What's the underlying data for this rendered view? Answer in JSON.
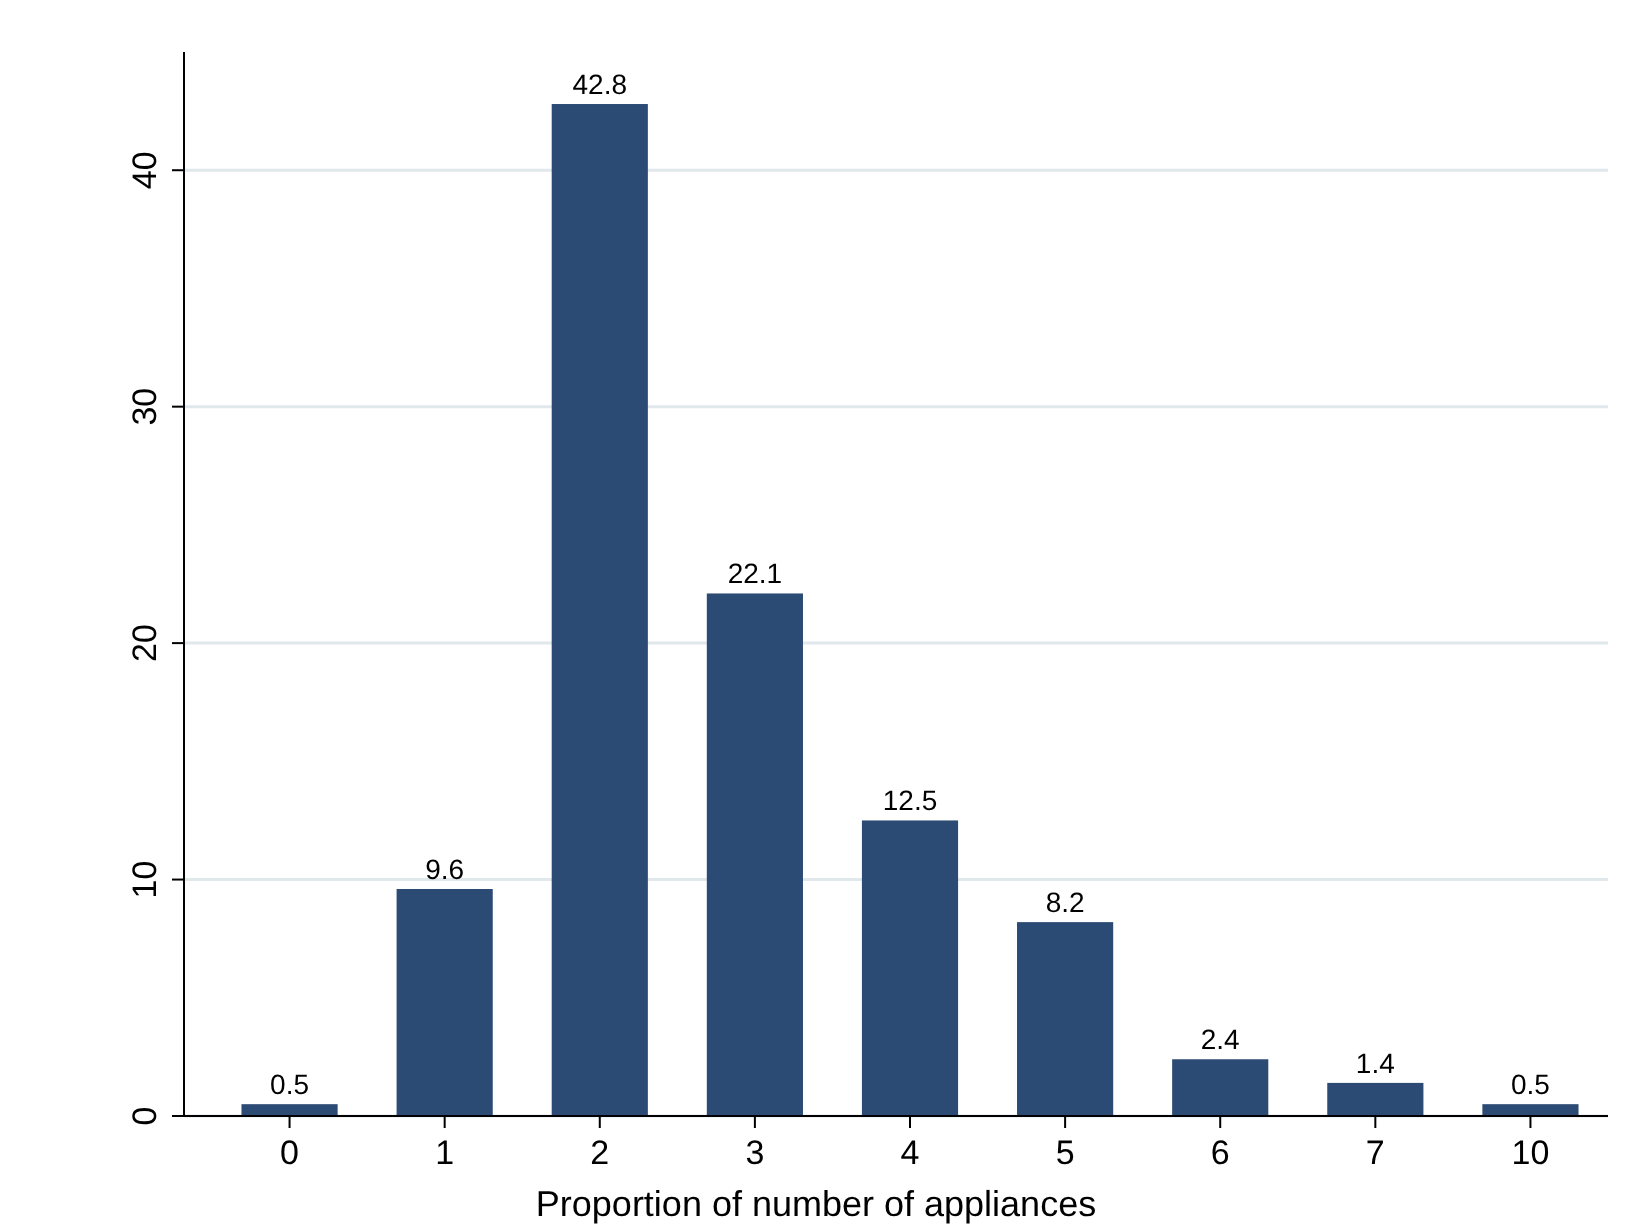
{
  "chart_data": {
    "type": "bar",
    "xlabel": "Proportion of number of appliances",
    "categories": [
      "0",
      "1",
      "2",
      "3",
      "4",
      "5",
      "6",
      "7",
      "10"
    ],
    "values": [
      0.5,
      9.6,
      42.8,
      22.1,
      12.5,
      8.2,
      2.4,
      1.4,
      0.5
    ],
    "color": "#2c4b74",
    "ylim": [
      0,
      45
    ],
    "yticks": [
      0,
      10,
      20,
      30,
      40
    ],
    "grid": "y",
    "data_labels": true
  }
}
